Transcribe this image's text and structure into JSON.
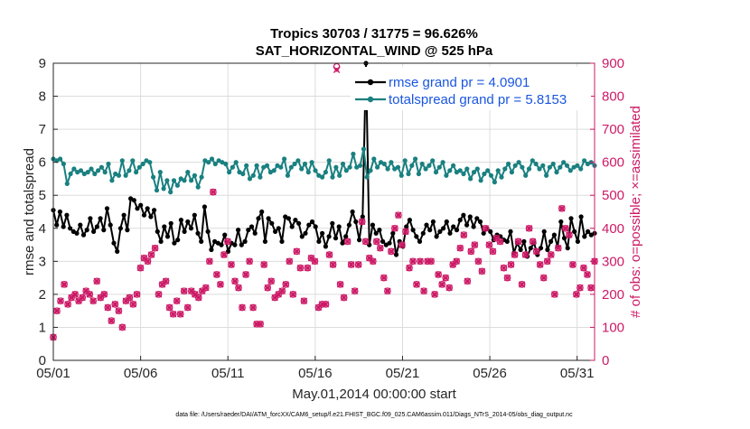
{
  "chart_data": {
    "type": "line",
    "title": "Tropics 30703 / 31775 = 96.626%",
    "subtitle": "SAT_HORIZONTAL_WIND @ 525 hPa",
    "xlabel": "May.01,2014 00:00:00 start",
    "ylabel": "rmse and totalspread",
    "ylabel_right": "# of obs: o=possible; ×=assimilated",
    "x_ticks": [
      "05/01",
      "05/06",
      "05/11",
      "05/16",
      "05/21",
      "05/26",
      "05/31"
    ],
    "y_ticks": [
      "0",
      "1",
      "2",
      "3",
      "4",
      "5",
      "6",
      "7",
      "8",
      "9"
    ],
    "y_ticks_right": [
      "0",
      "100",
      "200",
      "300",
      "400",
      "500",
      "600",
      "700",
      "800",
      "900"
    ],
    "xlim": [
      0,
      31
    ],
    "ylim": [
      0,
      9
    ],
    "ylim_right": [
      0,
      900
    ],
    "grid": true,
    "legend_position": "top-right",
    "footnote": "data file: /Users/raeder/DAI/ATM_forcXX/CAM6_setup/f.e21.FHIST_BGC.f09_025.CAM6assim.011/Diags_NTrS_2014-05/obs_diag_output.nc",
    "series": [
      {
        "name": "rmse",
        "legend": "rmse grand pr = 4.0901",
        "color": "#000000",
        "axis": "left",
        "values": [
          4.55,
          4.1,
          4.5,
          4.05,
          4.4,
          4.0,
          3.9,
          3.85,
          4.1,
          3.8,
          3.95,
          4.3,
          3.9,
          4.05,
          4.3,
          3.95,
          4.6,
          4.1,
          3.55,
          3.3,
          4.0,
          4.4,
          3.95,
          4.9,
          4.85,
          4.6,
          4.7,
          4.4,
          4.6,
          4.35,
          4.55,
          3.9,
          3.6,
          4.05,
          3.75,
          4.15,
          3.55,
          3.65,
          4.25,
          3.9,
          4.2,
          4.0,
          4.4,
          3.85,
          3.6,
          4.65,
          3.9,
          3.35,
          3.6,
          3.55,
          3.5,
          3.8,
          3.3,
          3.55,
          3.5,
          3.95,
          3.5,
          3.6,
          3.95,
          4.05,
          3.85,
          4.3,
          4.5,
          3.6,
          4.3,
          4.15,
          3.9,
          4.0,
          3.6,
          4.35,
          4.3,
          4.05,
          4.25,
          4.15,
          3.75,
          3.85,
          4.1,
          4.2,
          4.05,
          3.6,
          3.85,
          3.45,
          3.75,
          4.15,
          3.7,
          4.05,
          3.55,
          3.75,
          4.1,
          4.5,
          4.2,
          3.65,
          4.35,
          9.0,
          3.5,
          4.1,
          3.85,
          3.95,
          3.6,
          3.5,
          3.55,
          3.85,
          3.2,
          3.6,
          3.45,
          4.05,
          4.25,
          3.95,
          3.75,
          3.6,
          3.85,
          4.1,
          3.95,
          4.2,
          3.75,
          3.9,
          4.0,
          4.2,
          3.85,
          4.05,
          3.95,
          4.25,
          4.4,
          4.1,
          4.35,
          4.05,
          4.3,
          4.2,
          3.85,
          4.0,
          3.9,
          3.65,
          3.8,
          3.75,
          3.65,
          3.6,
          3.9,
          3.25,
          3.55,
          3.35,
          3.6,
          3.15,
          3.4,
          3.55,
          3.2,
          3.4,
          3.9,
          3.35,
          3.6,
          3.8,
          3.45,
          4.2,
          3.7,
          3.4,
          4.3,
          3.9,
          3.6,
          4.35,
          3.75,
          3.9,
          3.8,
          3.85
        ]
      },
      {
        "name": "totalspread",
        "legend": "totalspread grand pr = 5.8153",
        "color": "#1a8080",
        "axis": "left",
        "values": [
          6.1,
          6.05,
          6.1,
          5.95,
          5.35,
          5.65,
          5.8,
          5.7,
          5.75,
          5.65,
          5.7,
          5.8,
          5.65,
          5.75,
          5.85,
          5.7,
          5.95,
          5.45,
          5.65,
          5.6,
          6.05,
          5.6,
          5.75,
          6.05,
          5.7,
          5.85,
          5.95,
          6.05,
          6.0,
          5.55,
          5.15,
          5.7,
          5.2,
          5.45,
          5.1,
          5.45,
          5.3,
          5.5,
          5.45,
          5.7,
          5.45,
          5.6,
          5.25,
          5.55,
          6.05,
          6.0,
          6.1,
          5.95,
          6.05,
          6.0,
          5.95,
          5.7,
          5.85,
          6.0,
          5.7,
          5.65,
          5.9,
          5.5,
          5.6,
          5.9,
          5.55,
          5.85,
          5.9,
          5.7,
          5.75,
          5.9,
          5.85,
          6.1,
          5.6,
          5.85,
          5.95,
          6.05,
          5.8,
          5.95,
          5.7,
          6.0,
          5.75,
          5.6,
          5.55,
          5.7,
          6.05,
          5.55,
          5.85,
          5.6,
          5.95,
          5.75,
          5.85,
          6.25,
          5.85,
          5.9,
          6.4,
          5.55,
          5.75,
          6.1,
          5.85,
          6.0,
          5.95,
          5.8,
          6.0,
          5.8,
          5.85,
          5.6,
          6.05,
          5.65,
          5.9,
          6.1,
          5.65,
          5.95,
          5.8,
          5.9,
          6.05,
          5.7,
          5.85,
          6.0,
          5.6,
          5.75,
          5.9,
          5.7,
          5.75,
          5.65,
          5.8,
          5.5,
          5.7,
          5.8,
          5.45,
          5.65,
          5.75,
          5.6,
          5.4,
          5.75,
          5.55,
          5.8,
          5.95,
          5.7,
          5.9,
          6.0,
          5.85,
          5.6,
          5.8,
          6.05,
          5.95,
          5.8,
          5.9,
          5.6,
          5.85,
          5.95,
          5.7,
          5.85,
          6.0,
          5.9,
          5.75,
          5.85,
          5.9,
          5.8,
          6.05,
          5.95,
          6.0,
          5.9
        ]
      },
      {
        "name": "obs_possible",
        "color": "#cc1a66",
        "axis": "right",
        "values": [
          70,
          150,
          180,
          230,
          170,
          190,
          200,
          180,
          190,
          210,
          200,
          180,
          240,
          190,
          200,
          160,
          120,
          170,
          150,
          100,
          180,
          190,
          170,
          200,
          280,
          310,
          300,
          320,
          340,
          200,
          230,
          240,
          160,
          140,
          180,
          140,
          210,
          160,
          210,
          200,
          190,
          210,
          220,
          300,
          510,
          260,
          230,
          320,
          360,
          290,
          240,
          220,
          160,
          260,
          300,
          160,
          110,
          110,
          290,
          220,
          240,
          190,
          200,
          210,
          230,
          300,
          200,
          330,
          280,
          180,
          280,
          310,
          300,
          160,
          170,
          170,
          320,
          290,
          890,
          230,
          190,
          360,
          290,
          210,
          290,
          420,
          360,
          310,
          300,
          360,
          340,
          250,
          210,
          330,
          400,
          440,
          350,
          390,
          280,
          300,
          230,
          300,
          210,
          300,
          300,
          200,
          260,
          230,
          250,
          220,
          290,
          300,
          340,
          380,
          240,
          330,
          350,
          300,
          270,
          400,
          350,
          330,
          370,
          360,
          280,
          250,
          290,
          320,
          360,
          230,
          320,
          400,
          360,
          330,
          290,
          250,
          300,
          320,
          200,
          340,
          460,
          400,
          380,
          290,
          200,
          220,
          280,
          260,
          220,
          300
        ]
      },
      {
        "name": "obs_assimilated",
        "color": "#cc1a66",
        "axis": "right",
        "values": [
          70,
          150,
          180,
          230,
          170,
          190,
          200,
          180,
          190,
          210,
          200,
          180,
          240,
          190,
          200,
          160,
          120,
          170,
          150,
          100,
          180,
          190,
          170,
          200,
          280,
          310,
          300,
          320,
          340,
          200,
          230,
          240,
          160,
          140,
          180,
          140,
          210,
          160,
          210,
          200,
          190,
          210,
          220,
          300,
          510,
          260,
          230,
          320,
          360,
          290,
          240,
          220,
          160,
          260,
          300,
          160,
          110,
          110,
          290,
          220,
          240,
          190,
          200,
          210,
          230,
          300,
          200,
          330,
          280,
          180,
          280,
          310,
          300,
          160,
          170,
          170,
          320,
          290,
          880,
          230,
          190,
          360,
          290,
          210,
          290,
          420,
          360,
          310,
          300,
          360,
          340,
          250,
          210,
          330,
          400,
          440,
          350,
          390,
          280,
          300,
          230,
          300,
          210,
          300,
          300,
          200,
          260,
          230,
          250,
          220,
          290,
          300,
          340,
          380,
          240,
          330,
          350,
          300,
          270,
          400,
          350,
          330,
          370,
          360,
          280,
          250,
          290,
          320,
          360,
          230,
          320,
          400,
          360,
          330,
          290,
          250,
          300,
          320,
          200,
          340,
          460,
          400,
          380,
          290,
          200,
          220,
          280,
          260,
          220,
          300
        ]
      }
    ]
  }
}
